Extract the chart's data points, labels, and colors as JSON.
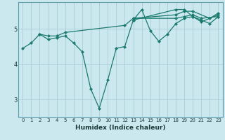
{
  "xlabel": "Humidex (Indice chaleur)",
  "bg_color": "#cce8ef",
  "grid_color": "#aacdd6",
  "line_color": "#1a7a6e",
  "xlim": [
    -0.5,
    23.5
  ],
  "ylim": [
    2.5,
    5.75
  ],
  "yticks": [
    3,
    4,
    5
  ],
  "xticks": [
    0,
    1,
    2,
    3,
    4,
    5,
    6,
    7,
    8,
    9,
    10,
    11,
    12,
    13,
    14,
    15,
    16,
    17,
    18,
    19,
    20,
    21,
    22,
    23
  ],
  "series": [
    {
      "x": [
        0,
        1,
        2,
        3,
        4,
        5,
        6,
        7,
        8,
        9,
        10,
        11,
        12,
        13,
        14,
        15,
        16,
        17,
        18,
        19,
        20,
        21,
        22,
        23
      ],
      "y": [
        4.45,
        4.6,
        4.85,
        4.7,
        4.75,
        4.8,
        4.6,
        4.35,
        3.3,
        2.75,
        3.55,
        4.45,
        4.5,
        5.25,
        5.55,
        4.95,
        4.65,
        4.85,
        5.15,
        5.3,
        5.35,
        5.25,
        5.15,
        5.35
      ]
    },
    {
      "x": [
        2,
        3,
        4,
        5,
        12,
        13,
        18,
        19,
        20,
        21,
        23
      ],
      "y": [
        4.85,
        4.8,
        4.8,
        4.9,
        5.1,
        5.3,
        5.3,
        5.35,
        5.4,
        5.3,
        5.35
      ]
    },
    {
      "x": [
        13,
        18,
        19,
        20,
        22,
        23
      ],
      "y": [
        5.3,
        5.4,
        5.5,
        5.5,
        5.3,
        5.45
      ]
    },
    {
      "x": [
        13,
        18,
        19,
        20,
        21,
        23
      ],
      "y": [
        5.25,
        5.55,
        5.55,
        5.35,
        5.2,
        5.4
      ]
    }
  ]
}
